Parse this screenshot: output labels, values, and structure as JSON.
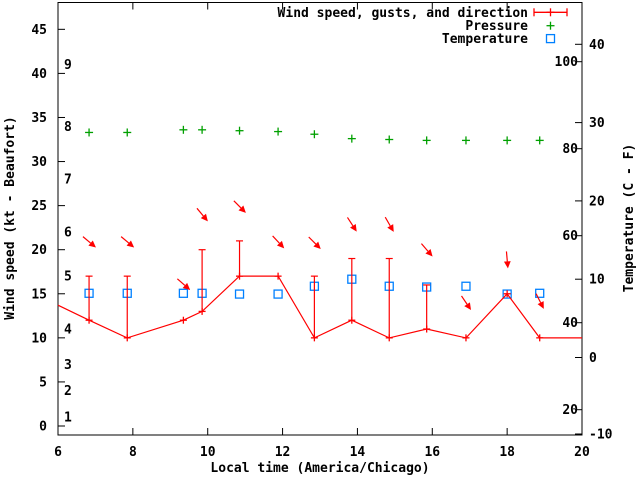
{
  "chart_data": {
    "type": "line",
    "title": "",
    "xlabel": "Local time (America/Chicago)",
    "ylabel": "Wind speed (kt - Beaufort)",
    "y2label": "Temperature (C - F)",
    "grid": false,
    "background": "#ffffff",
    "axis_color": "#000000",
    "x_axis": {
      "range": [
        6,
        20
      ],
      "ticks": [
        6,
        8,
        10,
        12,
        14,
        16,
        18,
        20
      ]
    },
    "y_axis_knots": {
      "range": [
        -1,
        48
      ],
      "ticks": [
        0,
        5,
        10,
        15,
        20,
        25,
        30,
        35,
        40,
        45
      ]
    },
    "y_axis_beaufort_labels": [
      {
        "b": "1",
        "kt": 1
      },
      {
        "b": "2",
        "kt": 4
      },
      {
        "b": "3",
        "kt": 7
      },
      {
        "b": "4",
        "kt": 11
      },
      {
        "b": "5",
        "kt": 17
      },
      {
        "b": "6",
        "kt": 22
      },
      {
        "b": "7",
        "kt": 28
      },
      {
        "b": "8",
        "kt": 34
      },
      {
        "b": "9",
        "kt": 41
      }
    ],
    "y2_axis_celsius": {
      "range": [
        -10,
        45
      ],
      "ticks": [
        -10,
        0,
        10,
        20,
        30,
        40
      ]
    },
    "y2_axis_fahrenheit_labels": [
      20,
      40,
      60,
      80,
      100
    ],
    "legend": {
      "position": "top-right-inside",
      "entries": [
        {
          "label": "Wind speed, gusts, and direction",
          "color": "#ff0000",
          "marker": "errorbar-line"
        },
        {
          "label": "Pressure",
          "color": "#00a000",
          "marker": "plus"
        },
        {
          "label": "Temperature",
          "color": "#0080ff",
          "marker": "open-square"
        }
      ]
    },
    "series": [
      {
        "name": "Wind speed, gusts, and direction",
        "type": "line+errorbars",
        "color": "#ff0000",
        "axis": "knots",
        "points": [
          {
            "t": 6.83,
            "kt": 12,
            "gust": 17
          },
          {
            "t": 7.85,
            "kt": 10,
            "gust": 17
          },
          {
            "t": 9.35,
            "kt": 12,
            "gust": null
          },
          {
            "t": 9.85,
            "kt": 13,
            "gust": 20
          },
          {
            "t": 10.85,
            "kt": 17,
            "gust": 21
          },
          {
            "t": 11.88,
            "kt": 17,
            "gust": null
          },
          {
            "t": 12.85,
            "kt": 10,
            "gust": 17
          },
          {
            "t": 13.85,
            "kt": 12,
            "gust": 19
          },
          {
            "t": 14.85,
            "kt": 10,
            "gust": 19
          },
          {
            "t": 15.85,
            "kt": 11,
            "gust": 16
          },
          {
            "t": 16.9,
            "kt": 10,
            "gust": null
          },
          {
            "t": 18.0,
            "kt": 15,
            "gust": null
          },
          {
            "t": 18.87,
            "kt": 10,
            "gust": null
          }
        ],
        "edge_start": {
          "t": 6.0,
          "kt": 13.7
        },
        "edge_end": {
          "t": 20.0,
          "kt": 10
        }
      },
      {
        "name": "Pressure",
        "type": "scatter",
        "marker": "plus",
        "color": "#00a000",
        "axis": "plotted near 33 kt level; no pressure axis shown, y in left-axis units",
        "points": [
          {
            "t": 6.83,
            "y": 33.3
          },
          {
            "t": 7.85,
            "y": 33.3
          },
          {
            "t": 9.35,
            "y": 33.6
          },
          {
            "t": 9.85,
            "y": 33.6
          },
          {
            "t": 10.85,
            "y": 33.5
          },
          {
            "t": 11.88,
            "y": 33.4
          },
          {
            "t": 12.85,
            "y": 33.1
          },
          {
            "t": 13.85,
            "y": 32.6
          },
          {
            "t": 14.85,
            "y": 32.5
          },
          {
            "t": 15.85,
            "y": 32.4
          },
          {
            "t": 16.9,
            "y": 32.4
          },
          {
            "t": 18.0,
            "y": 32.4
          },
          {
            "t": 18.87,
            "y": 32.4
          }
        ]
      },
      {
        "name": "Temperature",
        "type": "scatter",
        "marker": "open-square",
        "color": "#0080ff",
        "axis": "celsius",
        "points": [
          {
            "t": 6.83,
            "c": 8.2
          },
          {
            "t": 7.85,
            "c": 8.2
          },
          {
            "t": 9.35,
            "c": 8.2
          },
          {
            "t": 9.85,
            "c": 8.2
          },
          {
            "t": 10.85,
            "c": 8.1
          },
          {
            "t": 11.88,
            "c": 8.1
          },
          {
            "t": 12.85,
            "c": 9.1
          },
          {
            "t": 13.85,
            "c": 10.0
          },
          {
            "t": 14.85,
            "c": 9.1
          },
          {
            "t": 15.85,
            "c": 9.0
          },
          {
            "t": 16.9,
            "c": 9.1
          },
          {
            "t": 18.0,
            "c": 8.1
          },
          {
            "t": 18.87,
            "c": 8.2
          }
        ]
      },
      {
        "name": "Wind direction arrows",
        "type": "arrows",
        "color": "#ff0000",
        "axis": "left-axis position units; angle in screen degrees (0=right, 90=down)",
        "points": [
          {
            "t": 6.83,
            "y": 20.9,
            "angle": 40
          },
          {
            "t": 7.85,
            "y": 20.9,
            "angle": 40
          },
          {
            "t": 9.35,
            "y": 16.1,
            "angle": 41
          },
          {
            "t": 9.85,
            "y": 24.0,
            "angle": 50
          },
          {
            "t": 10.85,
            "y": 24.9,
            "angle": 45
          },
          {
            "t": 11.88,
            "y": 20.9,
            "angle": 47
          },
          {
            "t": 12.85,
            "y": 20.8,
            "angle": 45
          },
          {
            "t": 13.85,
            "y": 22.9,
            "angle": 57
          },
          {
            "t": 14.85,
            "y": 22.9,
            "angle": 60
          },
          {
            "t": 15.85,
            "y": 20.0,
            "angle": 49
          },
          {
            "t": 16.9,
            "y": 14.0,
            "angle": 56
          },
          {
            "t": 18.0,
            "y": 18.9,
            "angle": 85
          },
          {
            "t": 18.87,
            "y": 14.2,
            "angle": 63
          }
        ]
      }
    ]
  }
}
